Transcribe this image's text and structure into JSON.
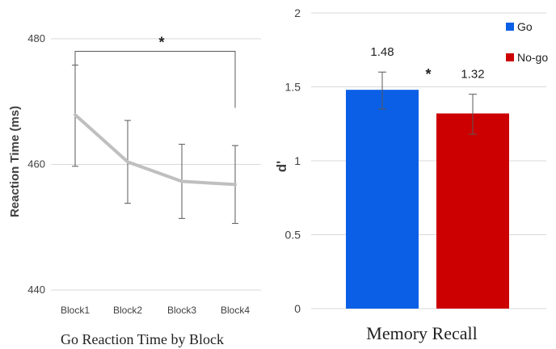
{
  "chart_data": [
    {
      "type": "line",
      "xlabel": "Go Reaction Time by Block",
      "ylabel": "Reaction Time (ms)",
      "ylim": [
        440,
        480
      ],
      "yticks": [
        "440",
        "460",
        "480"
      ],
      "categories": [
        "Block1",
        "Block2",
        "Block3",
        "Block4"
      ],
      "series": [
        {
          "values": [
            467.9,
            460.4,
            457.3,
            456.8
          ],
          "error_upper": [
            475.8,
            467.0,
            463.2,
            463.0
          ],
          "error_lower": [
            459.7,
            453.8,
            451.4,
            450.6
          ],
          "color": "#bfbfbf"
        }
      ],
      "significance": {
        "label": "*",
        "from": "Block1",
        "to": "Block4",
        "y": 478
      },
      "grid": true
    },
    {
      "type": "bar",
      "xlabel": "Memory Recall",
      "ylabel": "d'",
      "ylim": [
        0,
        2
      ],
      "yticks": [
        "0",
        "0.5",
        "1",
        "1.5",
        "2"
      ],
      "categories": [
        "Go",
        "No-go"
      ],
      "values": [
        1.48,
        1.32
      ],
      "data_labels": [
        "1.48",
        "1.32"
      ],
      "error_upper": [
        1.6,
        1.45
      ],
      "error_lower": [
        1.35,
        1.18
      ],
      "colors": [
        "#0a5fe6",
        "#cc0000"
      ],
      "significance": {
        "label": "*"
      },
      "legend": {
        "placement": "top-right",
        "entries": [
          {
            "label": "Go",
            "color": "#0a5fe6"
          },
          {
            "label": "No-go",
            "color": "#cc0000"
          }
        ]
      },
      "grid": true
    }
  ]
}
